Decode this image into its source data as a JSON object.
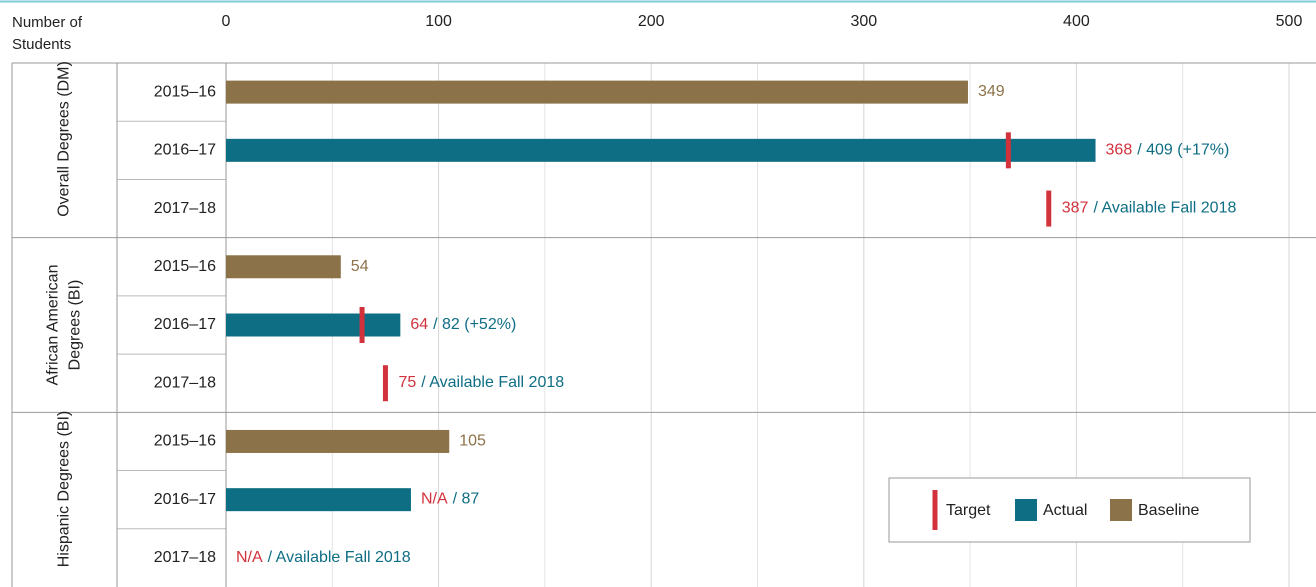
{
  "chart_data": {
    "type": "bar",
    "orientation": "horizontal",
    "x_label": "Number of Students",
    "xlim": [
      0,
      500
    ],
    "xticks": [
      0,
      100,
      200,
      300,
      400,
      500
    ],
    "xminorticks": [
      50,
      150,
      250,
      350,
      450
    ],
    "grid": true,
    "legend": "lower right",
    "groups": [
      {
        "name": "Overall Degrees (DM)",
        "categories": [
          "2015–16",
          "2016–17",
          "2017–18"
        ]
      },
      {
        "name": "African American Degrees (BI)",
        "categories": [
          "2015–16",
          "2016–17",
          "2017–18"
        ]
      },
      {
        "name": "Hispanic Degrees (BI)",
        "categories": [
          "2015–16",
          "2016–17",
          "2017–18"
        ]
      }
    ],
    "series": [
      {
        "name": "Target",
        "color": "#d2323c",
        "mark": "tick",
        "values": [
          null,
          368,
          387,
          null,
          64,
          75,
          null,
          null,
          null
        ],
        "value_labels": [
          null,
          null,
          null,
          null,
          null,
          null,
          null,
          "N/A",
          "N/A"
        ]
      },
      {
        "name": "Actual",
        "color": "#0e6e84",
        "mark": "bar",
        "values": [
          null,
          409,
          null,
          null,
          82,
          null,
          null,
          87,
          null
        ],
        "value_labels": [
          null,
          "/ 409 (+17%)",
          null,
          null,
          "/ 82 (+52%)",
          null,
          null,
          "/ 87",
          null
        ]
      },
      {
        "name": "Baseline",
        "color": "#8c7248",
        "mark": "bar",
        "values": [
          349,
          null,
          null,
          54,
          null,
          null,
          105,
          null,
          null
        ],
        "value_labels": [
          null,
          null,
          null,
          null,
          null,
          null,
          null,
          null,
          null
        ]
      }
    ],
    "notes": [
      null,
      null,
      "/ Available Fall 2018",
      null,
      null,
      "/ Available Fall 2018",
      null,
      null,
      "/ Available Fall 2018"
    ]
  }
}
